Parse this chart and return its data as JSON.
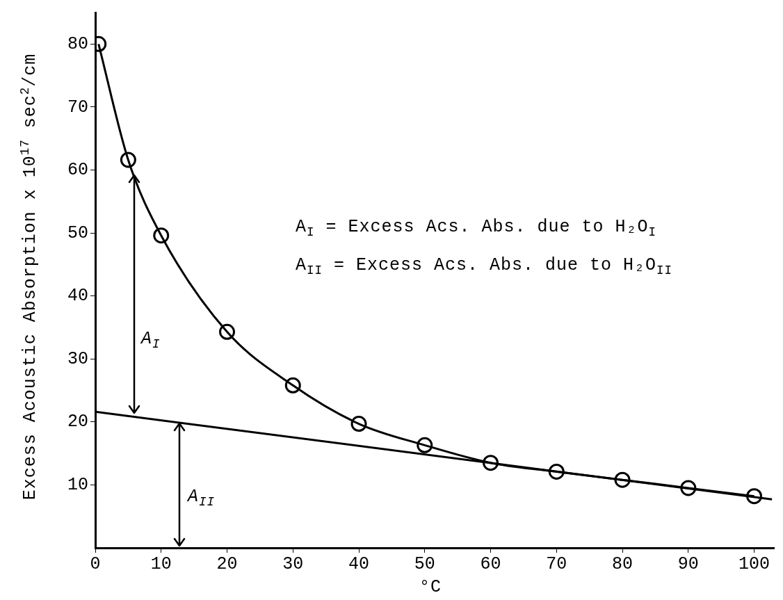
{
  "chart_data": {
    "type": "line",
    "xlabel": "°C",
    "ylabel": "Excess Acoustic Absorption x 10$^{17}$ sec$^{2}$/cm",
    "annotations": [
      "A$_{I}$",
      "A$_{II}$",
      "A$_{I}$ = Excess Acs. Abs. due to H₂O$_{I}$",
      "A$_{II}$ = Excess Acs. Abs. due to H₂O$_{II}$"
    ],
    "xlim": [
      0,
      103
    ],
    "xticks": [
      0,
      10,
      20,
      30,
      40,
      50,
      60,
      70,
      80,
      90,
      100
    ],
    "ylim": [
      0,
      85
    ],
    "yticks": [
      10,
      20,
      30,
      40,
      50,
      60,
      70,
      80
    ],
    "grid": false,
    "line_style": "solid",
    "marker": "circle",
    "series": [
      {
        "color": "#000000",
        "x": [
          0.5,
          5,
          10,
          20,
          30,
          40,
          50,
          60,
          70,
          80,
          90,
          100
        ],
        "values": [
          80,
          61.6,
          49.6,
          34.3,
          25.8,
          19.7,
          16.3,
          13.5,
          12.1,
          10.8,
          9.5,
          8.2
        ]
      },
      {
        "color": "#000000",
        "marker": "none",
        "x": [
          0,
          102.7
        ],
        "values": [
          21.6,
          7.7
        ]
      }
    ]
  }
}
